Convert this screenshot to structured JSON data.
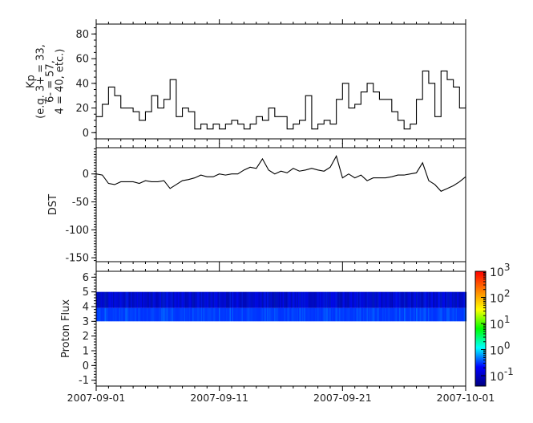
{
  "chart_data": [
    {
      "type": "line",
      "ylabel_lines": [
        "Kp",
        "(e.g. 3+ = 33,",
        "6- = 57,",
        "4 = 40, etc.)"
      ],
      "ylim": [
        -5,
        88
      ],
      "yticks": [
        "0",
        "20",
        "40",
        "60",
        "80"
      ],
      "ytick_values": [
        0,
        20,
        40,
        60,
        80
      ],
      "step": true,
      "x": [
        "2007-09-01 00:00",
        "2007-09-01 12:00",
        "2007-09-02 00:00",
        "2007-09-02 12:00",
        "2007-09-03 00:00",
        "2007-09-03 12:00",
        "2007-09-04 00:00",
        "2007-09-04 12:00",
        "2007-09-05 00:00",
        "2007-09-05 12:00",
        "2007-09-06 00:00",
        "2007-09-06 12:00",
        "2007-09-07 00:00",
        "2007-09-07 12:00",
        "2007-09-08 00:00",
        "2007-09-08 12:00",
        "2007-09-09 00:00",
        "2007-09-09 12:00",
        "2007-09-10 00:00",
        "2007-09-10 12:00",
        "2007-09-11 00:00",
        "2007-09-11 12:00",
        "2007-09-12 00:00",
        "2007-09-12 12:00",
        "2007-09-13 00:00",
        "2007-09-13 12:00",
        "2007-09-14 00:00",
        "2007-09-14 12:00",
        "2007-09-15 00:00",
        "2007-09-15 12:00",
        "2007-09-16 00:00",
        "2007-09-16 12:00",
        "2007-09-17 00:00",
        "2007-09-17 12:00",
        "2007-09-18 00:00",
        "2007-09-18 12:00",
        "2007-09-19 00:00",
        "2007-09-19 12:00",
        "2007-09-20 00:00",
        "2007-09-20 12:00",
        "2007-09-21 00:00",
        "2007-09-21 12:00",
        "2007-09-22 00:00",
        "2007-09-22 12:00",
        "2007-09-23 00:00",
        "2007-09-23 12:00",
        "2007-09-24 00:00",
        "2007-09-24 12:00",
        "2007-09-25 00:00",
        "2007-09-25 12:00",
        "2007-09-26 00:00",
        "2007-09-26 12:00",
        "2007-09-27 00:00",
        "2007-09-27 12:00",
        "2007-09-28 00:00",
        "2007-09-28 12:00",
        "2007-09-29 00:00",
        "2007-09-29 12:00",
        "2007-09-30 00:00",
        "2007-09-30 12:00",
        "2007-10-01 00:00"
      ],
      "values": [
        13,
        23,
        37,
        30,
        20,
        20,
        17,
        10,
        17,
        30,
        20,
        27,
        43,
        13,
        20,
        17,
        3,
        7,
        3,
        7,
        3,
        7,
        10,
        7,
        3,
        7,
        13,
        10,
        20,
        13,
        13,
        3,
        7,
        10,
        30,
        3,
        7,
        10,
        7,
        27,
        40,
        20,
        23,
        33,
        40,
        33,
        27,
        27,
        17,
        10,
        3,
        7,
        27,
        50,
        40,
        13,
        50,
        43,
        37,
        20,
        23
      ]
    },
    {
      "type": "line",
      "ylabel": "DST",
      "ylim": [
        -157,
        47
      ],
      "yticks": [
        "0",
        "-50",
        "-100",
        "-150"
      ],
      "ytick_values": [
        0,
        -50,
        -100,
        -150
      ],
      "values": [
        0,
        -2,
        -17,
        -19,
        -14,
        -14,
        -14,
        -17,
        -12,
        -14,
        -14,
        -12,
        -26,
        -19,
        -12,
        -10,
        -7,
        -2,
        -5,
        -5,
        0,
        -2,
        0,
        0,
        7,
        12,
        10,
        27,
        7,
        0,
        5,
        2,
        10,
        5,
        7,
        10,
        7,
        5,
        12,
        32,
        -7,
        0,
        -7,
        -2,
        -12,
        -7,
        -7,
        -7,
        -5,
        -2,
        -2,
        0,
        2,
        20,
        -12,
        -19,
        -31,
        -26,
        -21,
        -14,
        -5
      ]
    },
    {
      "type": "heatmap",
      "ylabel": "Proton Flux",
      "ylim": [
        -1.4,
        6.4
      ],
      "yticks": [
        "6",
        "5",
        "4",
        "3",
        "2",
        "1",
        "0",
        "-1"
      ],
      "ytick_values": [
        6,
        5,
        4,
        3,
        2,
        1,
        0,
        -1
      ],
      "band_range": [
        3,
        5
      ],
      "colorbar": {
        "scale": "log",
        "range": [
          0.04,
          1000
        ],
        "tick_bases": [
          "10",
          "10",
          "10",
          "10",
          "10"
        ],
        "tick_exponents": [
          "3",
          "2",
          "1",
          "0",
          "-1"
        ],
        "tick_values": [
          1000,
          100,
          10,
          1,
          0.1
        ],
        "colormap": [
          "#00007f",
          "#0000ff",
          "#00ffff",
          "#00ff00",
          "#ffff00",
          "#ff7f00",
          "#ff0000"
        ]
      }
    }
  ],
  "x_axis": {
    "ticks": [
      "2007-09-01",
      "2007-09-11",
      "2007-09-21",
      "2007-10-01"
    ],
    "start": "2007-09-01",
    "end": "2007-10-01"
  }
}
